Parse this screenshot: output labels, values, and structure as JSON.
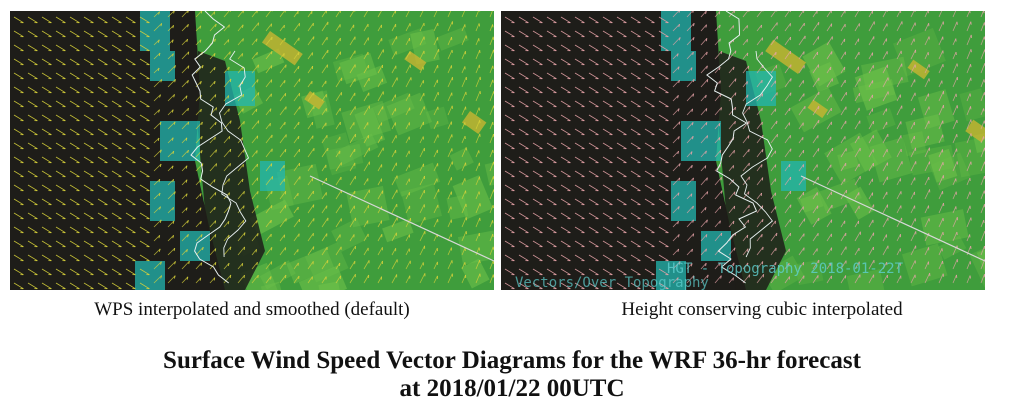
{
  "panels": [
    {
      "caption": "WPS interpolated and smoothed (default)",
      "vector_color": "#d8d23a",
      "overlay_lines": []
    },
    {
      "caption": "Height conserving cubic interpolated",
      "vector_color": "#e7a3a8",
      "overlay_lines": [
        "HGT - Topography 2018-01-22T",
        "Vectors/Over Topography"
      ]
    }
  ],
  "title": {
    "line1": "Surface Wind Speed Vector Diagrams for the WRF 36-hr forecast",
    "line2": "at 2018/01/22 00UTC"
  },
  "colors": {
    "background": "#1e1d19",
    "field_green": "#3f9d3c",
    "light_green": "#6fc24a",
    "cyan": "#23b7b0",
    "yellow": "#c9b531",
    "coastline": "#e8f0f0"
  }
}
